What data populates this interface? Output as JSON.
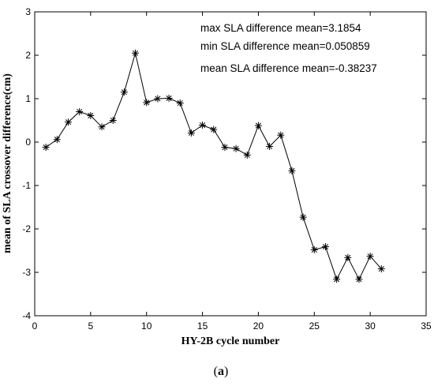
{
  "chart_data": {
    "type": "line",
    "xlabel": "HY-2B cycle number",
    "ylabel": "mean of SLA crossover difference(cm)",
    "xlim": [
      0,
      35
    ],
    "ylim": [
      -4,
      3
    ],
    "xticks": [
      0,
      5,
      10,
      15,
      20,
      25,
      30,
      35
    ],
    "yticks": [
      3,
      2,
      1,
      0,
      -1,
      -2,
      -3,
      -4
    ],
    "grid": false,
    "marker": "asterisk",
    "series": [
      {
        "x": [
          1,
          2,
          3,
          4,
          5,
          6,
          7,
          8,
          9,
          10,
          11,
          12,
          13,
          14,
          15,
          16,
          17,
          18,
          19,
          20,
          21,
          22,
          23,
          24,
          25,
          26,
          27,
          28,
          29,
          30,
          31
        ],
        "values": [
          -0.12,
          0.06,
          0.46,
          0.7,
          0.61,
          0.35,
          0.5,
          1.15,
          2.05,
          0.91,
          1.0,
          1.01,
          0.9,
          0.21,
          0.39,
          0.29,
          -0.12,
          -0.15,
          -0.3,
          0.38,
          -0.1,
          0.16,
          -0.66,
          -1.73,
          -2.48,
          -2.41,
          -3.16,
          -2.66,
          -3.16,
          -2.63,
          -2.92
        ]
      }
    ],
    "annotations": [
      "max SLA difference mean=3.1854",
      "min SLA difference mean=0.050859",
      "mean SLA difference mean=-0.38237"
    ]
  },
  "figure_label": {
    "open": "(",
    "letter": "a",
    "close": ")"
  }
}
